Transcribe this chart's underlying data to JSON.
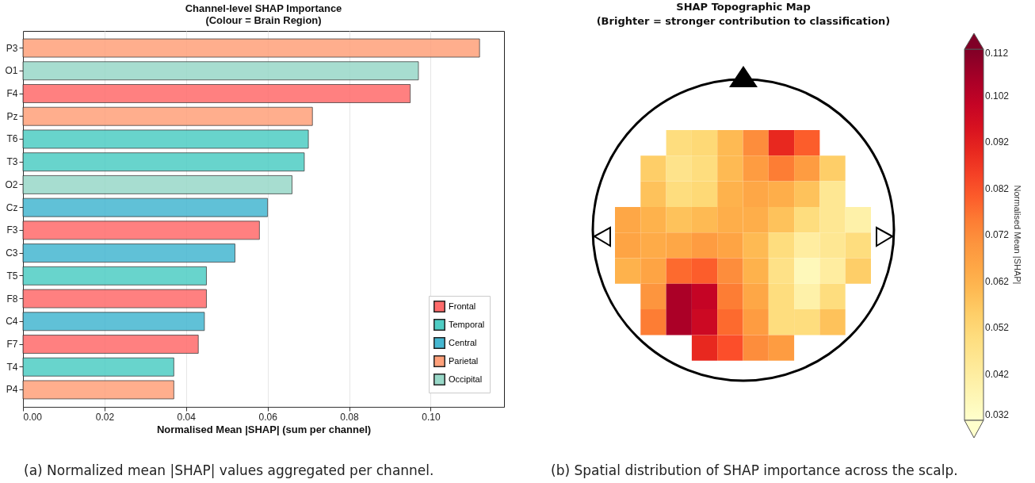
{
  "chart_data": [
    {
      "type": "bar",
      "orientation": "horizontal",
      "title": "Channel-level SHAP Importance",
      "subtitle": "(Colour = Brain Region)",
      "xlabel": "Normalised Mean |SHAP| (sum per channel)",
      "categories": [
        "P3",
        "O1",
        "F4",
        "Pz",
        "T6",
        "T3",
        "O2",
        "Cz",
        "F3",
        "C3",
        "T5",
        "F8",
        "C4",
        "F7",
        "T4",
        "P4"
      ],
      "series": [
        {
          "name": "Frontal",
          "color": "#ff6b6b",
          "values": [
            null,
            null,
            0.095,
            null,
            null,
            null,
            null,
            null,
            0.058,
            null,
            null,
            0.045,
            null,
            0.043,
            null,
            null
          ]
        },
        {
          "name": "Temporal",
          "color": "#4ecdc4",
          "values": [
            null,
            null,
            null,
            null,
            0.07,
            0.069,
            null,
            null,
            null,
            null,
            0.045,
            null,
            null,
            null,
            0.037,
            null
          ]
        },
        {
          "name": "Central",
          "color": "#45b7d1",
          "values": [
            null,
            null,
            null,
            null,
            null,
            null,
            null,
            0.06,
            null,
            0.052,
            null,
            null,
            0.0445,
            null,
            null,
            null
          ]
        },
        {
          "name": "Parietal",
          "color": "#ffa07a",
          "values": [
            0.112,
            null,
            null,
            0.071,
            null,
            null,
            null,
            null,
            null,
            null,
            null,
            null,
            null,
            null,
            null,
            0.037
          ]
        },
        {
          "name": "Occipital",
          "color": "#98d8c8",
          "values": [
            null,
            0.097,
            null,
            null,
            null,
            null,
            0.066,
            null,
            null,
            null,
            null,
            null,
            null,
            null,
            null,
            null
          ]
        }
      ],
      "xlim": [
        0,
        0.118
      ],
      "xticks": [
        {
          "value": 0,
          "label": "0.00"
        },
        {
          "value": 0.02,
          "label": "0.02"
        },
        {
          "value": 0.04,
          "label": "0.04"
        },
        {
          "value": 0.06,
          "label": "0.06"
        },
        {
          "value": 0.08,
          "label": "0.08"
        },
        {
          "value": 0.1,
          "label": "0.10"
        }
      ],
      "grid": "x",
      "legend": "bottom right",
      "annotations": [
        "(a) Normalized mean |SHAP| values aggregated per channel."
      ]
    },
    {
      "type": "heatmap",
      "title": "SHAP Topographic Map",
      "subtitle": "(Brighter = stronger contribution to classification)",
      "clabel": "Normalised Mean |SHAP|",
      "tick_labels": false,
      "categories": [
        null,
        null,
        null,
        null,
        null,
        null,
        null,
        null,
        null,
        null
      ],
      "y_categories": [
        null,
        null,
        null,
        null,
        null,
        null,
        null,
        null,
        null
      ],
      "cells": [
        [
          null,
          null,
          0.05,
          0.052,
          0.06,
          0.072,
          0.09,
          0.08,
          null,
          null
        ],
        [
          null,
          0.055,
          0.047,
          0.05,
          0.06,
          0.068,
          0.075,
          0.068,
          0.055,
          null
        ],
        [
          null,
          0.058,
          0.05,
          0.052,
          0.062,
          0.065,
          0.063,
          0.058,
          0.045,
          null
        ],
        [
          0.065,
          0.062,
          0.058,
          0.06,
          0.063,
          0.063,
          0.058,
          0.05,
          0.045,
          0.04
        ],
        [
          0.066,
          0.064,
          0.065,
          0.068,
          0.066,
          0.06,
          0.05,
          0.042,
          0.045,
          0.05
        ],
        [
          0.062,
          0.066,
          0.078,
          0.08,
          0.072,
          0.062,
          0.048,
          0.036,
          0.042,
          0.055
        ],
        [
          null,
          0.07,
          0.105,
          0.1,
          0.075,
          0.065,
          0.05,
          0.04,
          0.05,
          null
        ],
        [
          null,
          0.075,
          0.105,
          0.098,
          0.078,
          0.068,
          0.05,
          0.05,
          0.058,
          null
        ],
        [
          null,
          null,
          null,
          0.09,
          0.082,
          0.072,
          0.068,
          null,
          null,
          null
        ]
      ],
      "clim": [
        0.032,
        0.112
      ],
      "cticks": [
        0.032,
        0.042,
        0.052,
        0.062,
        0.072,
        0.082,
        0.092,
        0.102,
        0.112
      ],
      "annotations": [
        "(b) Spatial distribution of SHAP importance across the scalp."
      ]
    }
  ]
}
